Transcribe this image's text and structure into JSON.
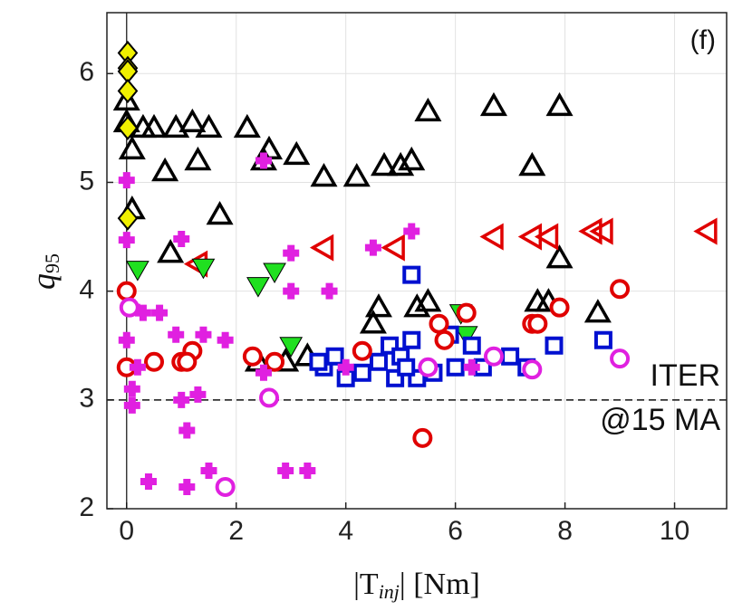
{
  "chart_data": {
    "type": "scatter",
    "x_label": {
      "pre": "|T",
      "sub": "inj",
      "post": "| [Nm]"
    },
    "y_label": {
      "base": "q",
      "sub": "95"
    },
    "annotations": [
      "(f)",
      "ITER",
      "@15 MA"
    ],
    "hline": 3,
    "xlim": [
      -0.36,
      10.95
    ],
    "ylim": [
      2,
      6.56
    ],
    "xticks": [
      0,
      2,
      4,
      6,
      8,
      10
    ],
    "yticks": [
      2,
      3,
      4,
      5,
      6
    ],
    "grid": true,
    "series": [
      {
        "marker": "triangle-up",
        "color": "#000000",
        "x": [
          0,
          0,
          0.1,
          0.3,
          0.5,
          0.7,
          0.9,
          1.2,
          1.3,
          1.5,
          2.2,
          2.5,
          2.6,
          3.1,
          3.6,
          4.2,
          4.7,
          5,
          5.2,
          5.5,
          6.7,
          7.9,
          7.4,
          0.1,
          1.7,
          0.8,
          7.9,
          7.5,
          7.7,
          8.6,
          4.6,
          5.3,
          5.5,
          4.5,
          2.9,
          2.4,
          3.3
        ],
        "values": [
          5.75,
          5.55,
          5.3,
          5.5,
          5.5,
          5.1,
          5.5,
          5.55,
          5.2,
          5.5,
          5.5,
          5.2,
          5.3,
          5.25,
          5.05,
          5.05,
          5.15,
          5.15,
          5.2,
          5.65,
          5.7,
          5.7,
          5.15,
          4.75,
          4.7,
          4.35,
          4.3,
          3.9,
          3.9,
          3.8,
          3.85,
          3.85,
          3.9,
          3.7,
          3.35,
          3.35,
          3.4
        ]
      },
      {
        "marker": "triangle-left",
        "color": "#e00000",
        "x": [
          1.3,
          3.6,
          4.9,
          6.7,
          7.4,
          7.7,
          8.5,
          8.7,
          10.6
        ],
        "values": [
          4.25,
          4.4,
          4.4,
          4.5,
          4.5,
          4.5,
          4.55,
          4.55,
          4.55
        ]
      },
      {
        "marker": "triangle-down",
        "color": "#20e020",
        "x": [
          0.2,
          1.4,
          2.4,
          2.7,
          3.0,
          6.1,
          6.2
        ],
        "values": [
          4.2,
          4.22,
          4.05,
          4.18,
          3.5,
          3.8,
          3.6
        ]
      },
      {
        "marker": "square",
        "color": "#0010d0",
        "x": [
          5.2,
          4.6,
          4.8,
          5.0,
          5.2,
          5.3,
          5.6,
          4.0,
          4.3,
          3.6,
          3.8,
          6.3,
          6.5,
          7.0,
          7.3,
          7.8,
          8.7,
          5.9,
          4.9,
          5.1,
          6.0,
          3.5
        ],
        "values": [
          4.15,
          3.35,
          3.5,
          3.4,
          3.55,
          3.2,
          3.25,
          3.2,
          3.25,
          3.3,
          3.4,
          3.5,
          3.3,
          3.4,
          3.3,
          3.5,
          3.55,
          3.6,
          3.2,
          3.3,
          3.3,
          3.35
        ]
      },
      {
        "marker": "circle",
        "color": "#e00000",
        "x": [
          0,
          0,
          0.5,
          1.0,
          1.2,
          1.1,
          2.3,
          2.7,
          4.3,
          5.4,
          5.7,
          5.8,
          6.2,
          7.4,
          7.5,
          7.9,
          9
        ],
        "values": [
          4,
          3.3,
          3.35,
          3.35,
          3.45,
          3.35,
          3.4,
          3.35,
          3.45,
          2.65,
          3.7,
          3.55,
          3.8,
          3.7,
          3.7,
          3.85,
          4.02
        ]
      },
      {
        "marker": "cross",
        "color": "#e020e0",
        "x": [
          0,
          0,
          0,
          0.1,
          0.3,
          0.6,
          0.9,
          1.0,
          1.4,
          1.8,
          0.2,
          0.1,
          0.1,
          1.0,
          1.3,
          1.1,
          0.4,
          1.1,
          1.5,
          2.9,
          3.3,
          3.7,
          3.0,
          2.5,
          3.0,
          4.5,
          5.2,
          4.0,
          6.3,
          2.5
        ],
        "values": [
          5.02,
          4.47,
          3.55,
          3.85,
          3.8,
          3.8,
          3.6,
          4.48,
          3.6,
          3.55,
          3.3,
          3.1,
          2.95,
          3.0,
          3.05,
          2.72,
          2.25,
          2.2,
          2.35,
          2.35,
          2.35,
          4.0,
          4.0,
          5.2,
          4.35,
          4.4,
          4.55,
          3.3,
          3.3,
          3.25
        ]
      },
      {
        "marker": "circle",
        "color": "#e020e0",
        "x": [
          0.05,
          2.6,
          1.8,
          6.7,
          7.4,
          9.0,
          5.5
        ],
        "values": [
          3.85,
          3.02,
          2.2,
          3.4,
          3.28,
          3.38,
          3.3
        ]
      },
      {
        "marker": "diamond",
        "color": "#f0f000",
        "x": [
          0.02,
          0.02,
          0.02,
          0.02,
          0.02,
          0.02
        ],
        "values": [
          6.19,
          6.05,
          6.02,
          5.84,
          5.5,
          4.67
        ]
      }
    ]
  }
}
